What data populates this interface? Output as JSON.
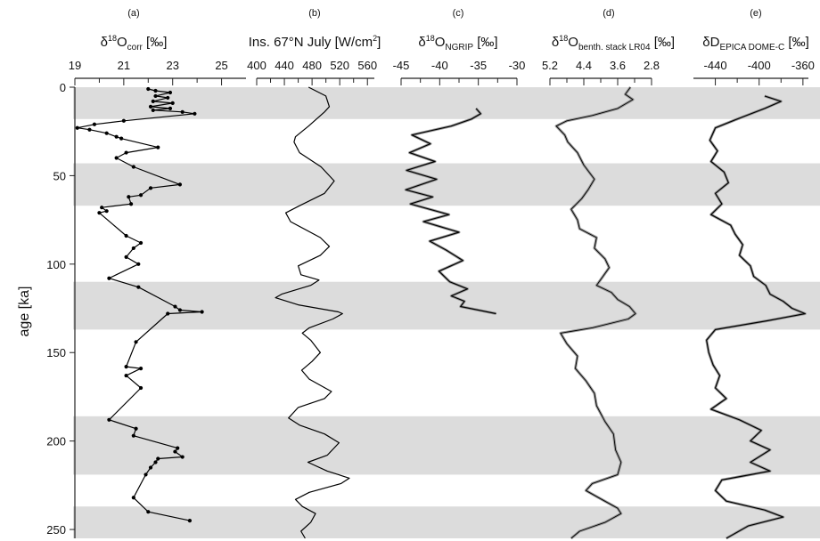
{
  "y_axis": {
    "label": "age [ka]",
    "range": [
      0,
      255
    ],
    "ticks": [
      "0",
      "50",
      "100",
      "150",
      "200",
      "250"
    ],
    "tick_values": [
      0,
      50,
      100,
      150,
      200,
      250
    ]
  },
  "bands": [
    [
      0,
      18
    ],
    [
      43,
      67
    ],
    [
      110,
      137
    ],
    [
      186,
      219
    ],
    [
      237,
      255
    ]
  ],
  "colors": {
    "band": "#dcdcdc",
    "line": "#000000",
    "envelope": "#9a9a9a"
  },
  "panels": [
    {
      "id": "a",
      "letter": "(a)",
      "title": {
        "main": "δ",
        "sup": "18",
        "after": "O",
        "sub": "corr",
        "end": " [‰]"
      },
      "ticks": [
        "19",
        "21",
        "23",
        "25"
      ],
      "tick_values": [
        19,
        21,
        23,
        25
      ],
      "range": [
        19,
        26
      ],
      "reversed": false
    },
    {
      "id": "b",
      "letter": "(b)",
      "title": {
        "main": "Ins. 67°N July [W/cm",
        "sup": "2",
        "after": "]",
        "sub": "",
        "end": ""
      },
      "ticks": [
        "400",
        "440",
        "480",
        "520",
        "560"
      ],
      "tick_values": [
        400,
        440,
        480,
        520,
        560
      ],
      "range": [
        400,
        570
      ],
      "reversed": false
    },
    {
      "id": "c",
      "letter": "(c)",
      "title": {
        "main": "δ",
        "sup": "18",
        "after": "O",
        "sub": "NGRIP",
        "end": " [‰]"
      },
      "ticks": [
        "-45",
        "-40",
        "-35",
        "-30"
      ],
      "tick_values": [
        -45,
        -40,
        -35,
        -30
      ],
      "range": [
        -45,
        -30
      ],
      "reversed": false
    },
    {
      "id": "d",
      "letter": "(d)",
      "title": {
        "main": "δ",
        "sup": "18",
        "after": "O",
        "sub": "benth. stack LR04",
        "end": " [‰]"
      },
      "ticks": [
        "5.2",
        "4.4",
        "3.6",
        "2.8"
      ],
      "tick_values": [
        5.2,
        4.4,
        3.6,
        2.8
      ],
      "range": [
        5.2,
        2.8
      ],
      "reversed": true
    },
    {
      "id": "e",
      "letter": "(e)",
      "title": {
        "main": "δD",
        "sup": "",
        "after": "",
        "sub": "EPICA DOME-C",
        "end": " [‰]"
      },
      "ticks": [
        "-440",
        "-400",
        "-360"
      ],
      "tick_values": [
        -440,
        -400,
        -360
      ],
      "range": [
        -460,
        -355
      ],
      "reversed": false
    }
  ],
  "chart_data": [
    {
      "type": "line",
      "panel": "(a)",
      "series": [
        {
          "points": [
            [
              22.0,
              1
            ],
            [
              22.3,
              2
            ],
            [
              22.9,
              3
            ],
            [
              22.3,
              5
            ],
            [
              22.8,
              6
            ],
            [
              22.2,
              8
            ],
            [
              23.0,
              9
            ],
            [
              22.1,
              11
            ],
            [
              22.9,
              12
            ],
            [
              22.2,
              13
            ],
            [
              23.4,
              14
            ],
            [
              23.9,
              15
            ],
            [
              21.0,
              19
            ],
            [
              19.8,
              21
            ],
            [
              19.1,
              23
            ],
            [
              19.6,
              24
            ],
            [
              20.3,
              26
            ],
            [
              20.7,
              28
            ],
            [
              20.9,
              29
            ],
            [
              22.4,
              34
            ],
            [
              21.1,
              37
            ],
            [
              20.7,
              40
            ],
            [
              21.4,
              45
            ],
            [
              23.3,
              55
            ],
            [
              22.1,
              57
            ],
            [
              21.7,
              61
            ],
            [
              21.2,
              62
            ],
            [
              21.3,
              66
            ],
            [
              20.1,
              68
            ],
            [
              20.3,
              70
            ],
            [
              20.0,
              71
            ],
            [
              21.1,
              84
            ],
            [
              21.7,
              88
            ],
            [
              21.4,
              91
            ],
            [
              21.1,
              96
            ],
            [
              21.6,
              100
            ],
            [
              20.4,
              108
            ],
            [
              21.6,
              113
            ],
            [
              23.1,
              124
            ],
            [
              23.3,
              126
            ],
            [
              24.2,
              127
            ],
            [
              22.8,
              128
            ],
            [
              21.5,
              144
            ],
            [
              21.1,
              158
            ],
            [
              21.7,
              159
            ],
            [
              21.1,
              163
            ],
            [
              21.7,
              170
            ],
            [
              20.4,
              188
            ],
            [
              21.5,
              193
            ],
            [
              21.4,
              197
            ],
            [
              23.2,
              204
            ],
            [
              23.1,
              206
            ],
            [
              23.4,
              209
            ],
            [
              22.4,
              210
            ],
            [
              22.3,
              212
            ],
            [
              22.1,
              215
            ],
            [
              21.9,
              219
            ],
            [
              21.4,
              232
            ],
            [
              22.0,
              240
            ],
            [
              23.7,
              245
            ]
          ]
        }
      ],
      "xlim": [
        19,
        26
      ],
      "ylim": [
        0,
        255
      ]
    },
    {
      "type": "line",
      "panel": "(b)",
      "series": [
        {
          "points": [
            [
              475,
              0
            ],
            [
              500,
              5
            ],
            [
              505,
              11
            ],
            [
              498,
              14
            ],
            [
              475,
              22
            ],
            [
              456,
              28
            ],
            [
              454,
              31
            ],
            [
              462,
              37
            ],
            [
              493,
              45
            ],
            [
              512,
              53
            ],
            [
              498,
              60
            ],
            [
              462,
              67
            ],
            [
              442,
              71
            ],
            [
              449,
              76
            ],
            [
              492,
              85
            ],
            [
              505,
              90
            ],
            [
              492,
              95
            ],
            [
              460,
              101
            ],
            [
              464,
              106
            ],
            [
              490,
              109
            ],
            [
              478,
              112
            ],
            [
              436,
              117
            ],
            [
              427,
              119
            ],
            [
              460,
              123
            ],
            [
              518,
              127
            ],
            [
              524,
              128
            ],
            [
              510,
              131
            ],
            [
              476,
              136
            ],
            [
              466,
              139
            ],
            [
              478,
              143
            ],
            [
              492,
              150
            ],
            [
              480,
              155
            ],
            [
              465,
              160
            ],
            [
              476,
              165
            ],
            [
              508,
              172
            ],
            [
              498,
              176
            ],
            [
              460,
              181
            ],
            [
              446,
              187
            ],
            [
              462,
              191
            ],
            [
              498,
              196
            ],
            [
              519,
              201
            ],
            [
              502,
              208
            ],
            [
              474,
              212
            ],
            [
              502,
              217
            ],
            [
              534,
              221
            ],
            [
              522,
              224
            ],
            [
              476,
              229
            ],
            [
              456,
              233
            ],
            [
              466,
              237
            ],
            [
              485,
              241
            ],
            [
              478,
              246
            ],
            [
              464,
              251
            ],
            [
              470,
              255
            ]
          ]
        }
      ],
      "xlim": [
        400,
        570
      ],
      "ylim": [
        0,
        255
      ]
    },
    {
      "type": "line",
      "panel": "(c)",
      "series": [
        {
          "points": [
            [
              -35.3,
              12
            ],
            [
              -34.7,
              15
            ],
            [
              -35.9,
              18
            ],
            [
              -38.5,
              22
            ],
            [
              -43.6,
              27
            ],
            [
              -41.2,
              32
            ],
            [
              -43.9,
              37
            ],
            [
              -40.6,
              42
            ],
            [
              -44.3,
              47
            ],
            [
              -40.4,
              52
            ],
            [
              -44.4,
              58
            ],
            [
              -40.9,
              62
            ],
            [
              -43.8,
              66
            ],
            [
              -38.8,
              72
            ],
            [
              -42.1,
              76
            ],
            [
              -37.5,
              82
            ],
            [
              -41.3,
              87
            ],
            [
              -39.2,
              92
            ],
            [
              -37.0,
              98
            ],
            [
              -40.1,
              104
            ],
            [
              -38.7,
              110
            ],
            [
              -36.4,
              114
            ],
            [
              -38.5,
              118
            ],
            [
              -36.8,
              121
            ],
            [
              -37.3,
              124
            ],
            [
              -35.0,
              126
            ],
            [
              -32.7,
              128
            ]
          ]
        }
      ],
      "xlim": [
        -45,
        -30
      ],
      "ylim": [
        0,
        255
      ]
    },
    {
      "type": "line",
      "panel": "(d)",
      "series": [
        {
          "points": [
            [
              3.3,
              0
            ],
            [
              3.42,
              4
            ],
            [
              3.24,
              7
            ],
            [
              3.6,
              12
            ],
            [
              4.2,
              16
            ],
            [
              4.8,
              19
            ],
            [
              5.05,
              22
            ],
            [
              4.85,
              27
            ],
            [
              4.78,
              31
            ],
            [
              4.55,
              37
            ],
            [
              4.4,
              44
            ],
            [
              4.15,
              52
            ],
            [
              4.3,
              58
            ],
            [
              4.45,
              63
            ],
            [
              4.7,
              69
            ],
            [
              4.55,
              75
            ],
            [
              4.5,
              80
            ],
            [
              4.1,
              85
            ],
            [
              4.15,
              91
            ],
            [
              3.9,
              97
            ],
            [
              3.8,
              102
            ],
            [
              3.95,
              107
            ],
            [
              4.1,
              112
            ],
            [
              3.75,
              116
            ],
            [
              3.6,
              120
            ],
            [
              3.32,
              124
            ],
            [
              3.18,
              128
            ],
            [
              3.35,
              131
            ],
            [
              4.2,
              136
            ],
            [
              4.95,
              139
            ],
            [
              4.8,
              145
            ],
            [
              4.55,
              152
            ],
            [
              4.6,
              159
            ],
            [
              4.35,
              166
            ],
            [
              4.15,
              173
            ],
            [
              4.1,
              180
            ],
            [
              3.9,
              189
            ],
            [
              3.7,
              196
            ],
            [
              3.65,
              205
            ],
            [
              3.52,
              212
            ],
            [
              3.6,
              219
            ],
            [
              4.2,
              224
            ],
            [
              4.35,
              228
            ],
            [
              4.05,
              232
            ],
            [
              3.6,
              238
            ],
            [
              3.52,
              241
            ],
            [
              3.9,
              246
            ],
            [
              4.5,
              251
            ],
            [
              4.7,
              255
            ]
          ]
        }
      ],
      "xlim": [
        5.2,
        2.8
      ],
      "ylim": [
        0,
        255
      ]
    },
    {
      "type": "line",
      "panel": "(e)",
      "series": [
        {
          "points": [
            [
              -395,
              5
            ],
            [
              -380,
              8
            ],
            [
              -395,
              12
            ],
            [
              -420,
              18
            ],
            [
              -440,
              23
            ],
            [
              -445,
              30
            ],
            [
              -438,
              36
            ],
            [
              -444,
              42
            ],
            [
              -432,
              48
            ],
            [
              -428,
              54
            ],
            [
              -440,
              60
            ],
            [
              -434,
              66
            ],
            [
              -444,
              72
            ],
            [
              -426,
              78
            ],
            [
              -422,
              83
            ],
            [
              -415,
              89
            ],
            [
              -418,
              95
            ],
            [
              -408,
              101
            ],
            [
              -405,
              107
            ],
            [
              -394,
              112
            ],
            [
              -390,
              117
            ],
            [
              -378,
              121
            ],
            [
              -370,
              125
            ],
            [
              -358,
              128
            ],
            [
              -392,
              132
            ],
            [
              -440,
              137
            ],
            [
              -448,
              143
            ],
            [
              -446,
              150
            ],
            [
              -442,
              157
            ],
            [
              -436,
              163
            ],
            [
              -440,
              170
            ],
            [
              -430,
              176
            ],
            [
              -444,
              182
            ],
            [
              -418,
              188
            ],
            [
              -398,
              194
            ],
            [
              -408,
              200
            ],
            [
              -390,
              205
            ],
            [
              -408,
              212
            ],
            [
              -390,
              217
            ],
            [
              -434,
              222
            ],
            [
              -440,
              228
            ],
            [
              -430,
              234
            ],
            [
              -395,
              239
            ],
            [
              -378,
              243
            ],
            [
              -410,
              248
            ],
            [
              -430,
              255
            ]
          ]
        }
      ],
      "xlim": [
        -460,
        -355
      ],
      "ylim": [
        0,
        255
      ]
    }
  ]
}
